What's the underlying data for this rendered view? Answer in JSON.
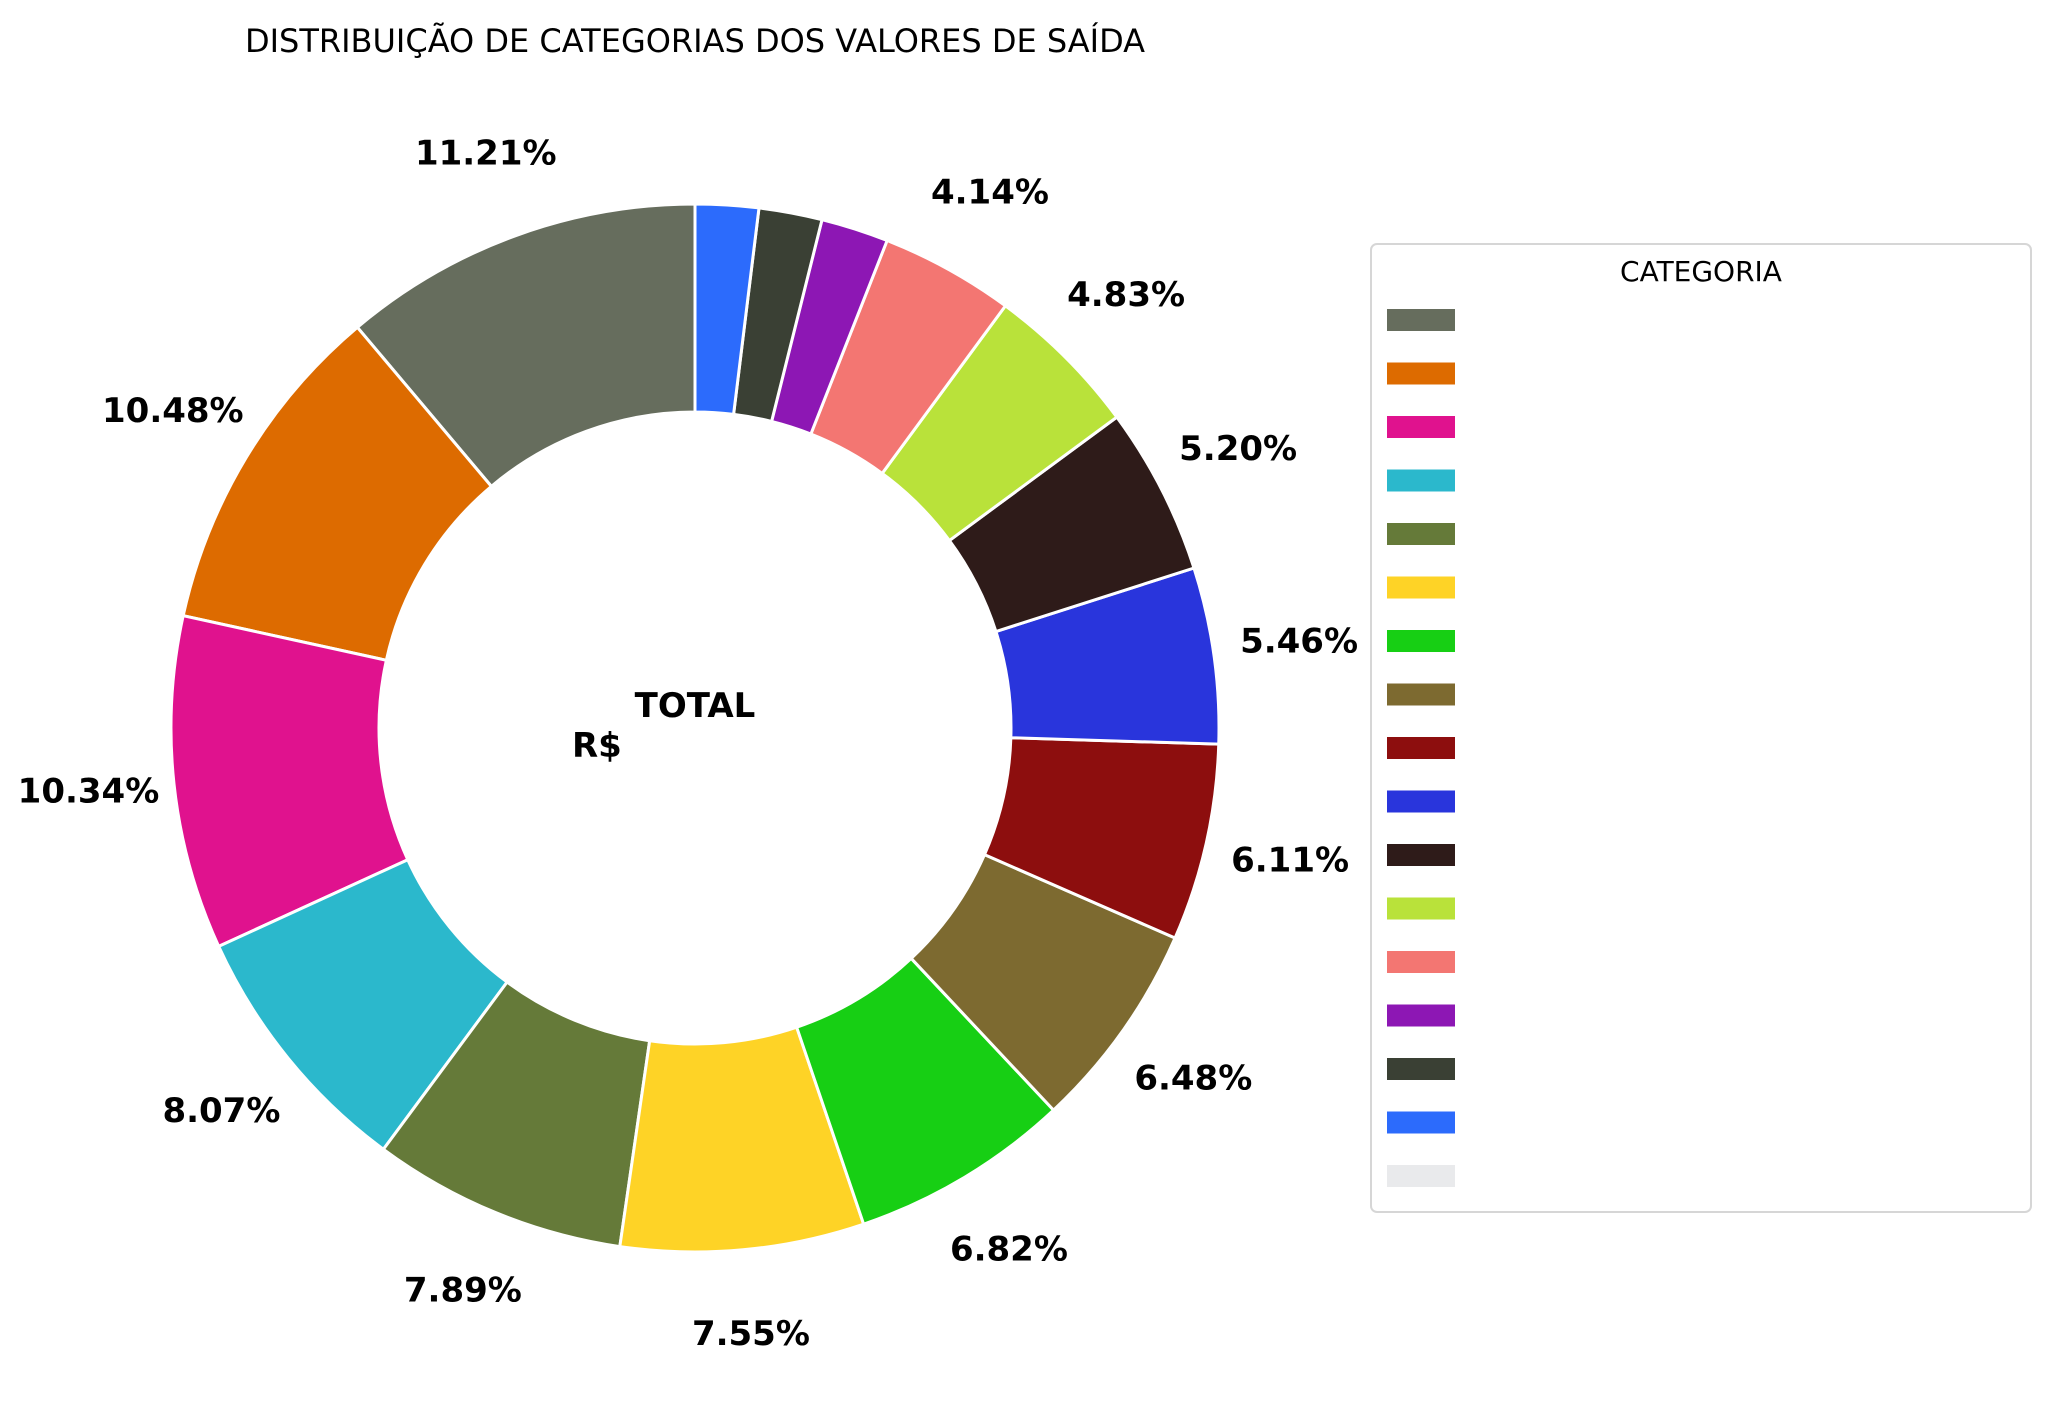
{
  "chart_data": {
    "type": "pie",
    "variant": "donut",
    "title": "DISTRIBUIÇÃO DE CATEGORIAS DOS VALORES DE SAÍDA",
    "center_label": {
      "line1": "TOTAL",
      "line2": "R$"
    },
    "legend": {
      "title": "CATEGORIA",
      "placement": "right"
    },
    "start_angle_deg": 90,
    "direction": "counterclockwise",
    "slices": [
      {
        "value": 11.21,
        "label": "11.21%",
        "color": "#666d5d"
      },
      {
        "value": 10.48,
        "label": "10.48%",
        "color": "#dd6b00"
      },
      {
        "value": 10.34,
        "label": "10.34%",
        "color": "#e0128e"
      },
      {
        "value": 8.07,
        "label": "8.07%",
        "color": "#2bb8cc"
      },
      {
        "value": 7.89,
        "label": "7.89%",
        "color": "#657a39"
      },
      {
        "value": 7.55,
        "label": "7.55%",
        "color": "#fed326"
      },
      {
        "value": 6.82,
        "label": "6.82%",
        "color": "#17cf14"
      },
      {
        "value": 6.48,
        "label": "6.48%",
        "color": "#7d6a30"
      },
      {
        "value": 6.11,
        "label": "6.11%",
        "color": "#8d0e0e"
      },
      {
        "value": 5.46,
        "label": "5.46%",
        "color": "#2935dc"
      },
      {
        "value": 5.2,
        "label": "5.20%",
        "color": "#2e1b19"
      },
      {
        "value": 4.83,
        "label": "4.83%",
        "color": "#b9e23a"
      },
      {
        "value": 4.14,
        "label": "4.14%",
        "color": "#f37672"
      },
      {
        "value": 2.09,
        "label": "",
        "color": "#8d17b4"
      },
      {
        "value": 1.96,
        "label": "",
        "color": "#3a4034"
      },
      {
        "value": 1.96,
        "label": "",
        "color": "#2c6bfc"
      },
      {
        "value": 0.0,
        "label": "",
        "color": "#e9eaec"
      }
    ]
  }
}
